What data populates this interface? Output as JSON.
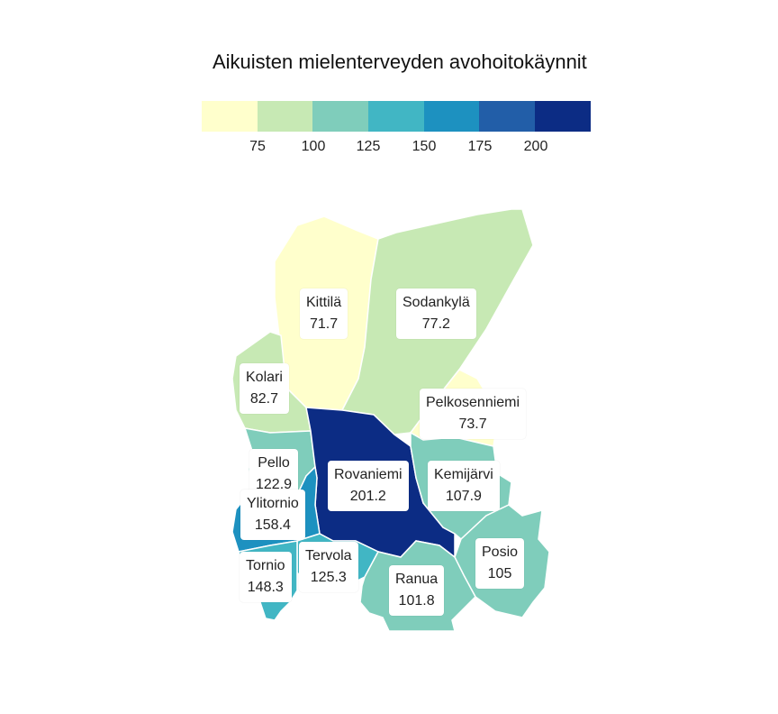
{
  "title": "Aikuisten mielenterveyden avohoitokäynnit",
  "legend": {
    "colors": [
      "#ffffcc",
      "#c7e9b4",
      "#7fcdbb",
      "#41b6c4",
      "#1d91c0",
      "#225ea8",
      "#0c2c84"
    ],
    "ticks": [
      "75",
      "100",
      "125",
      "150",
      "175",
      "200"
    ]
  },
  "municipalities": [
    {
      "name": "Kittilä",
      "value": "71.7"
    },
    {
      "name": "Sodankylä",
      "value": "77.2"
    },
    {
      "name": "Kolari",
      "value": "82.7"
    },
    {
      "name": "Pelkosenniemi",
      "value": "73.7"
    },
    {
      "name": "Pello",
      "value": "122.9"
    },
    {
      "name": "Rovaniemi",
      "value": "201.2"
    },
    {
      "name": "Kemijärvi",
      "value": "107.9"
    },
    {
      "name": "Ylitornio",
      "value": "158.4"
    },
    {
      "name": "Posio",
      "value": "105"
    },
    {
      "name": "Tervola",
      "value": "125.3"
    },
    {
      "name": "Tornio",
      "value": "148.3"
    },
    {
      "name": "Ranua",
      "value": "101.8"
    }
  ]
}
